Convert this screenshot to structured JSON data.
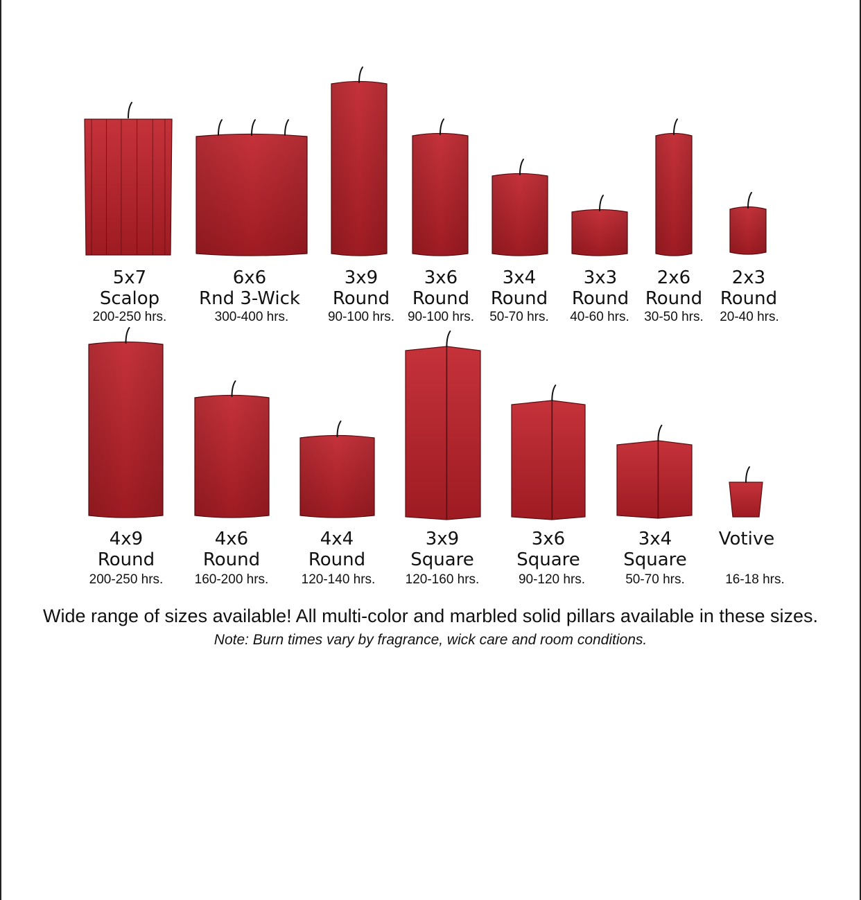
{
  "colors": {
    "candle_top": "#c5323a",
    "candle_bottom": "#9e1b22",
    "edge": "#5a0c10",
    "wick": "#111111"
  },
  "rows": [
    {
      "candles": [
        {
          "size": "5x7",
          "type": "Scalop",
          "hours": "200-250 hrs.",
          "shape": "scalop",
          "wicks": 1
        },
        {
          "size": "6x6",
          "type": "Rnd 3-Wick",
          "hours": "300-400 hrs.",
          "shape": "round",
          "wicks": 3
        },
        {
          "size": "3x9",
          "type": "Round",
          "hours": "90-100 hrs.",
          "shape": "round",
          "wicks": 1
        },
        {
          "size": "3x6",
          "type": "Round",
          "hours": "90-100 hrs.",
          "shape": "round",
          "wicks": 1
        },
        {
          "size": "3x4",
          "type": "Round",
          "hours": "50-70 hrs.",
          "shape": "round",
          "wicks": 1
        },
        {
          "size": "3x3",
          "type": "Round",
          "hours": "40-60 hrs.",
          "shape": "round",
          "wicks": 1
        },
        {
          "size": "2x6",
          "type": "Round",
          "hours": "30-50 hrs.",
          "shape": "round",
          "wicks": 1
        },
        {
          "size": "2x3",
          "type": "Round",
          "hours": "20-40 hrs.",
          "shape": "round",
          "wicks": 1
        }
      ]
    },
    {
      "candles": [
        {
          "size": "4x9",
          "type": "Round",
          "hours": "200-250 hrs.",
          "shape": "round",
          "wicks": 1
        },
        {
          "size": "4x6",
          "type": "Round",
          "hours": "160-200 hrs.",
          "shape": "round",
          "wicks": 1
        },
        {
          "size": "4x4",
          "type": "Round",
          "hours": "120-140 hrs.",
          "shape": "round",
          "wicks": 1
        },
        {
          "size": "3x9",
          "type": "Square",
          "hours": "120-160 hrs.",
          "shape": "square",
          "wicks": 1
        },
        {
          "size": "3x6",
          "type": "Square",
          "hours": "90-120 hrs.",
          "shape": "square",
          "wicks": 1
        },
        {
          "size": "3x4",
          "type": "Square",
          "hours": "50-70 hrs.",
          "shape": "square",
          "wicks": 1
        },
        {
          "size": "Votive",
          "type": "",
          "hours": "16-18 hrs.",
          "shape": "votive",
          "wicks": 1
        }
      ]
    }
  ],
  "headline": "Wide range of sizes available! All multi-color and marbled solid pillars available in these sizes.",
  "note": "Note: Burn times vary by fragrance, wick care and room conditions."
}
